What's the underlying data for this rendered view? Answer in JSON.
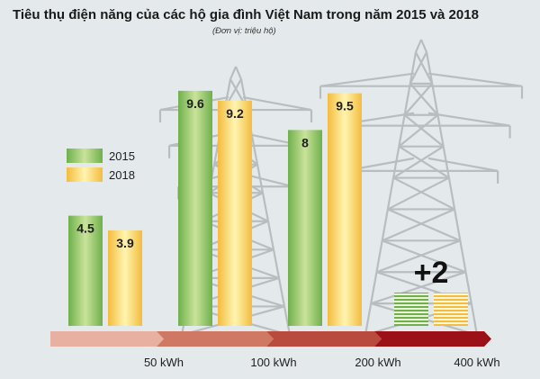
{
  "title": "Tiêu thụ điện năng của các hộ gia đình Việt Nam trong năm 2015 và 2018",
  "subtitle": "(Đơn vị: triệu hộ)",
  "colors": {
    "green_light": "#c9e39a",
    "green_dark": "#6fb04c",
    "yellow_light": "#fff4b0",
    "yellow_dark": "#f3bc3e",
    "arrow_segments": [
      "#e8b0a0",
      "#cf7864",
      "#b94b3e",
      "#9c1118"
    ],
    "tower": "#b8bec0"
  },
  "chart_data": {
    "type": "bar",
    "title": "Tiêu thụ điện năng của các hộ gia đình Việt Nam trong năm 2015 và 2018",
    "subtitle": "(Đơn vị: triệu hộ)",
    "categories": [
      "< 50 kWh",
      "50 - 100 kWh",
      "100 - 200 kWh",
      "200 - 400 kWh"
    ],
    "tick_labels": [
      "50 kWh",
      "100 kWh",
      "200 kWh",
      "400 kWh"
    ],
    "series": [
      {
        "name": "2015",
        "values": [
          4.5,
          9.6,
          8,
          null
        ],
        "labels": [
          "4.5",
          "9.6",
          "8",
          ""
        ]
      },
      {
        "name": "2018",
        "values": [
          3.9,
          9.2,
          9.5,
          null
        ],
        "labels": [
          "3.9",
          "9.2",
          "9.5",
          ""
        ]
      }
    ],
    "annotation": "+2",
    "ylim": [
      0,
      10
    ],
    "legend_position": "left",
    "grid": false
  }
}
